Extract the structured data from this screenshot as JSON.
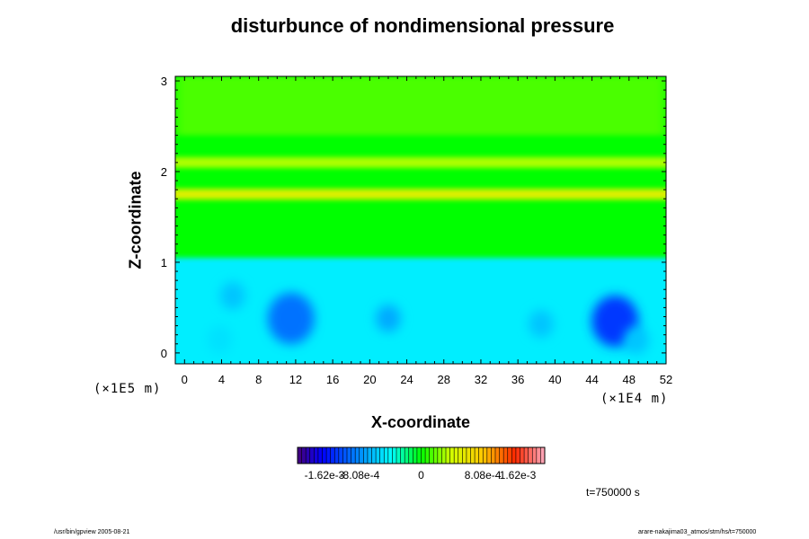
{
  "chart_data": {
    "type": "heatmap",
    "title": "disturbunce of nondimensional pressure",
    "xlabel": "X-coordinate",
    "ylabel": "Z-coordinate",
    "x_ticks": [
      0,
      4,
      8,
      12,
      16,
      20,
      24,
      28,
      32,
      36,
      40,
      44,
      48,
      52
    ],
    "y_ticks": [
      0,
      1,
      2,
      3
    ],
    "xlim": [
      -1,
      52
    ],
    "ylim": [
      -0.12,
      3.05
    ],
    "x_scale_label": "(×1E4 m)",
    "y_scale_label": "(×1E5 m)",
    "colorbar": {
      "min": -0.00162,
      "max": 0.00162,
      "tick_values": [
        -0.00162,
        -0.000808,
        0,
        0.000808,
        0.00162
      ],
      "tick_labels": [
        "-1.62e-3",
        "-8.08e-4",
        "0",
        "8.08e-4",
        "1.62e-3"
      ]
    },
    "field": {
      "background": 0.0,
      "upper_value": 0.00025,
      "bands": [
        {
          "z": 2.1,
          "value": 0.00032
        },
        {
          "z": 1.75,
          "value": 0.0005
        }
      ],
      "lower_region": {
        "z_top": 1.05,
        "value": -0.00045
      },
      "blobs": [
        {
          "x": 11.5,
          "z": 0.38,
          "value": -0.0009
        },
        {
          "x": 22.0,
          "z": 0.38,
          "value": -0.0007
        },
        {
          "x": 46.5,
          "z": 0.35,
          "value": -0.0011
        },
        {
          "x": 5.2,
          "z": 0.63,
          "value": -0.0006
        },
        {
          "x": 38.5,
          "z": 0.32,
          "value": -0.0006
        },
        {
          "x": 3.8,
          "z": 0.15,
          "value": -0.0005
        },
        {
          "x": 48.8,
          "z": 0.14,
          "value": -0.0006
        }
      ]
    }
  },
  "annotations": {
    "time": "t=750000 s",
    "footer_left": "/usr/bin/gpview 2005-08-21",
    "footer_right": "arare-nakajima03_atmos/stm/hs/t=750000"
  },
  "colors": {
    "background": "#00ff00",
    "band": "#e8ff00",
    "lower": "#00ffd0",
    "low_min": "#0060ff"
  }
}
